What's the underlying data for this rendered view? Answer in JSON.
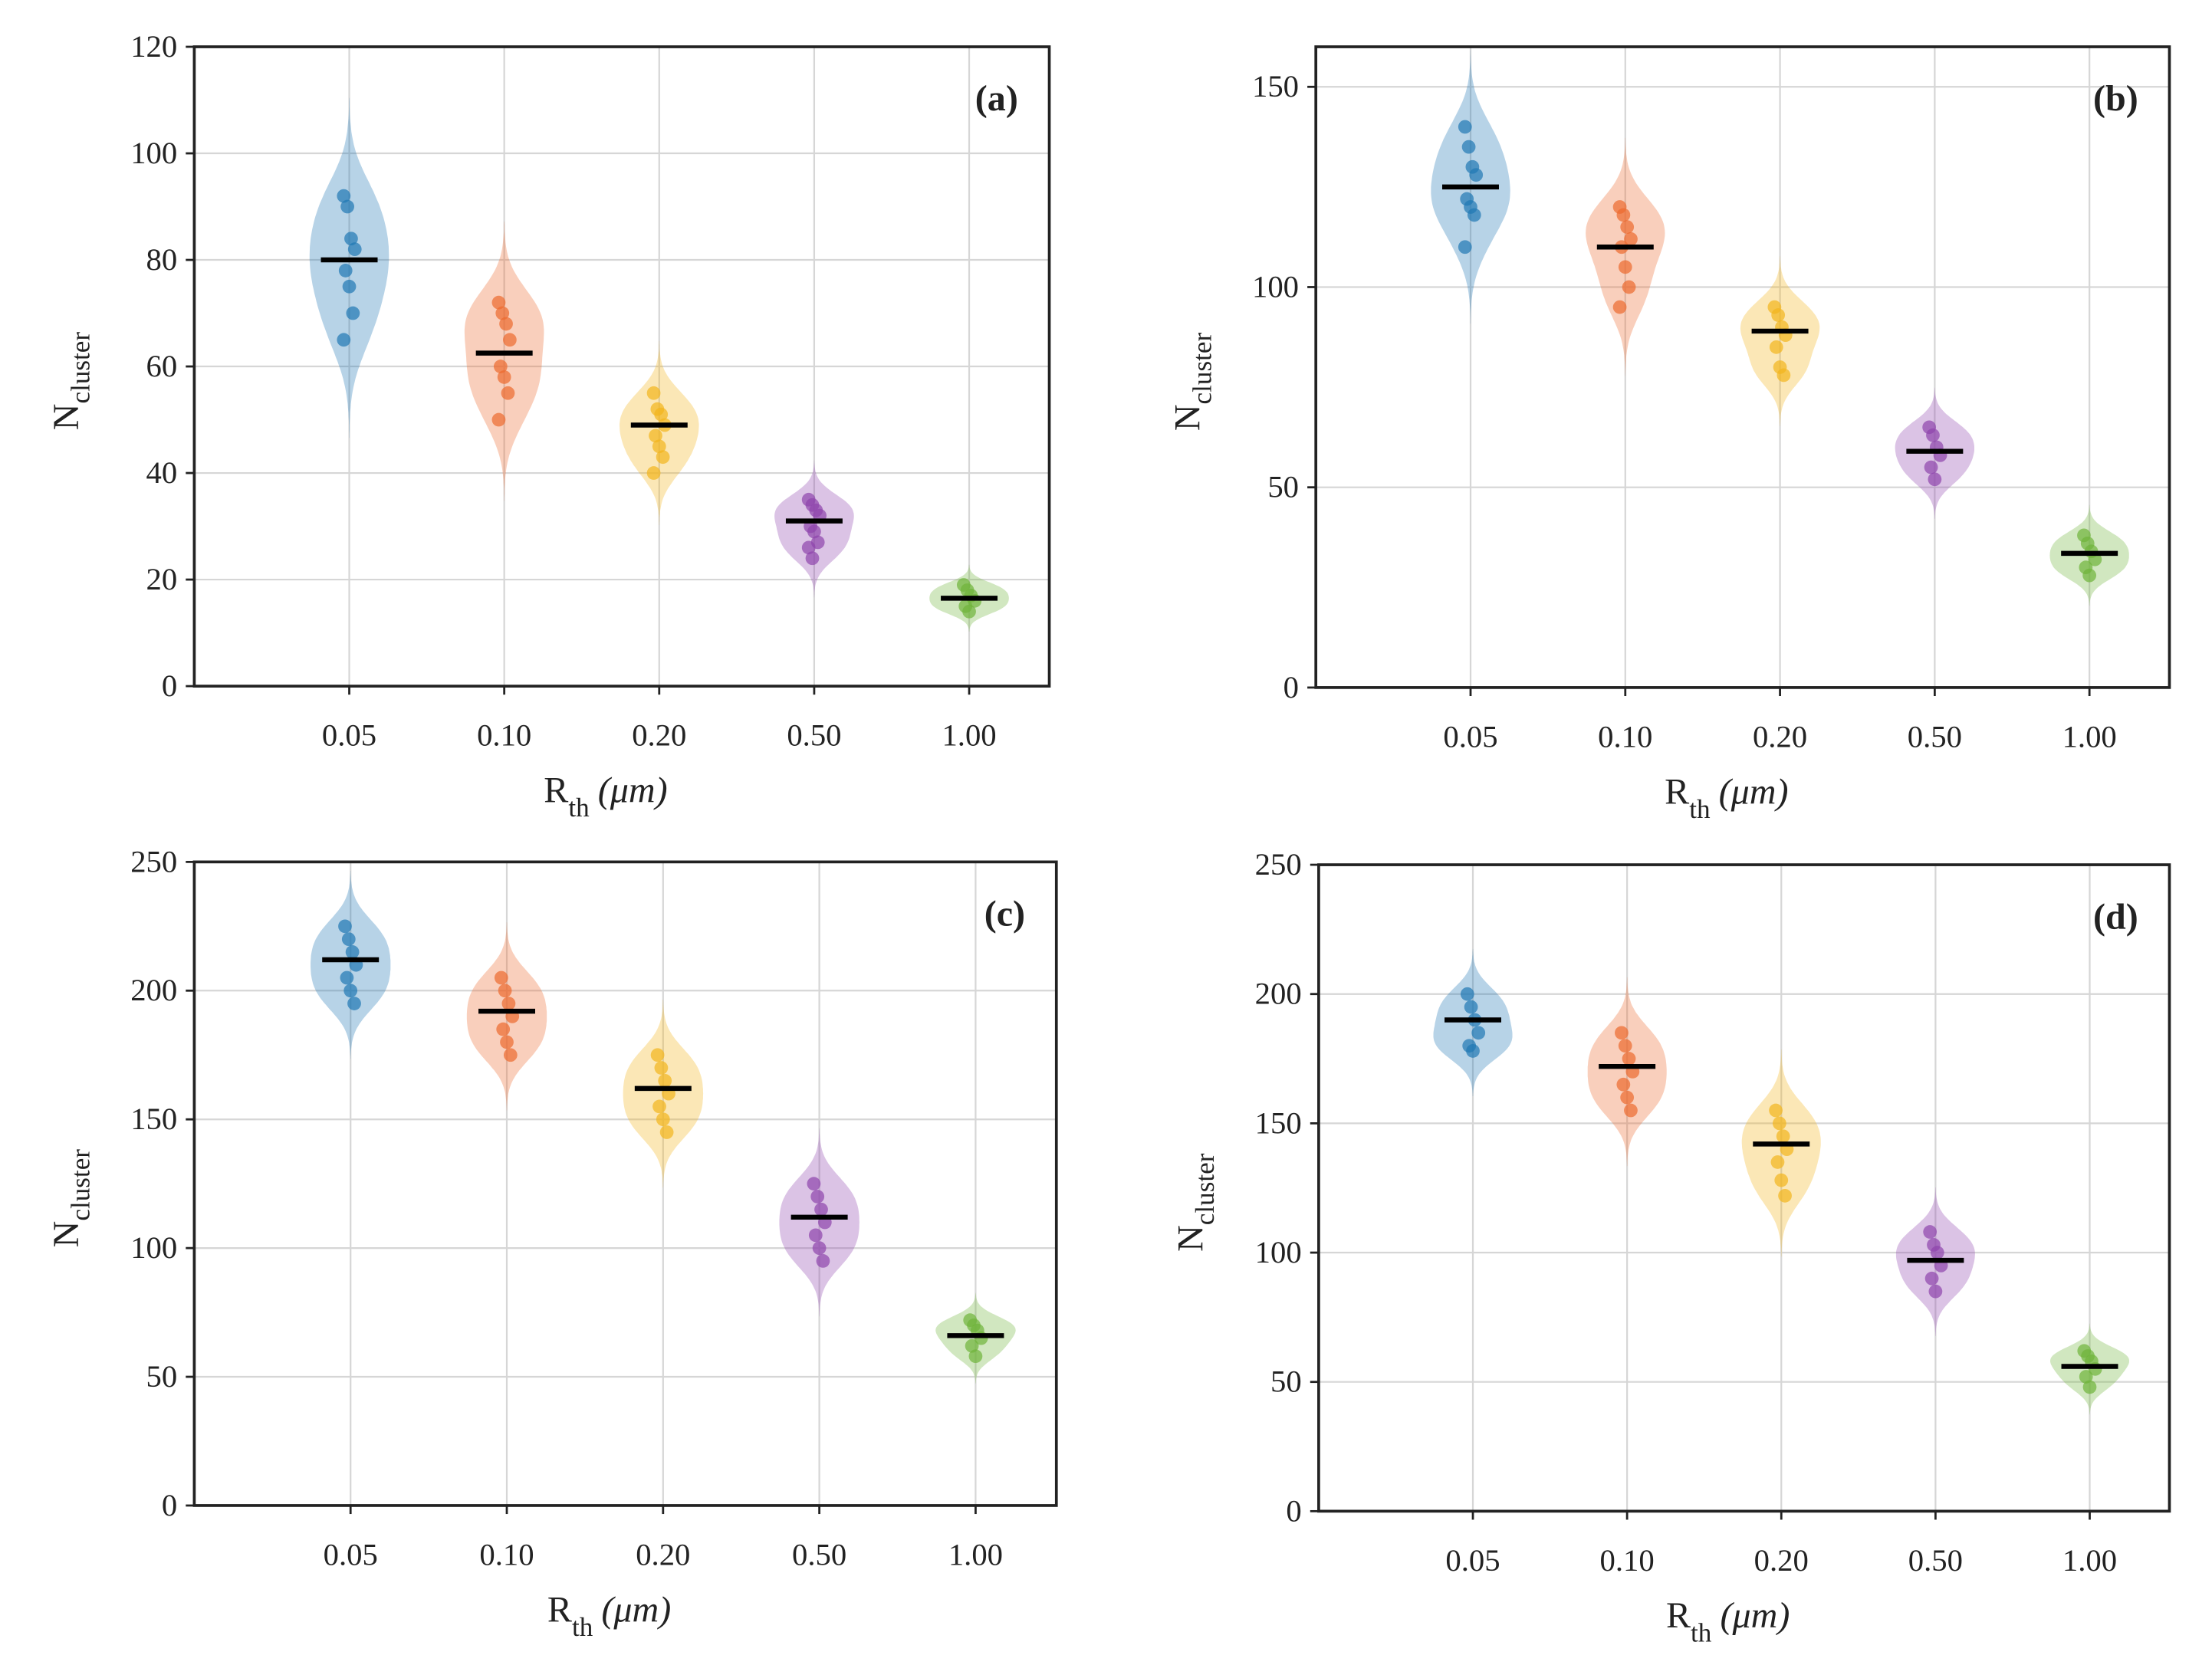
{
  "colors": [
    "#1f77b4",
    "#ec6a2e",
    "#f2b51c",
    "#8e44ad",
    "#6fb43a"
  ],
  "chart_data": [
    {
      "type": "violin",
      "panel_label": "(a)",
      "xlabel_main": "R",
      "xlabel_sub": "th",
      "xlabel_unit": "(μm)",
      "ylabel_main": "N",
      "ylabel_sub": "cluster",
      "categories": [
        "0.05",
        "0.10",
        "0.20",
        "0.50",
        "1.00"
      ],
      "ylim": [
        0,
        120
      ],
      "yticks": [
        0,
        20,
        40,
        60,
        80,
        100,
        120
      ],
      "grid": true,
      "means": [
        80,
        62.5,
        49,
        31,
        16.5
      ],
      "points": [
        [
          92,
          90,
          84,
          82,
          78,
          75,
          70,
          65
        ],
        [
          72,
          70,
          68,
          65,
          60,
          58,
          55,
          50
        ],
        [
          55,
          52,
          51,
          49,
          47,
          45,
          43,
          40
        ],
        [
          35,
          34,
          33,
          32,
          30,
          29,
          27,
          26,
          24
        ],
        [
          19,
          18,
          17,
          16,
          15,
          14
        ]
      ]
    },
    {
      "type": "violin",
      "panel_label": "(b)",
      "xlabel_main": "R",
      "xlabel_sub": "th",
      "xlabel_unit": "(μm)",
      "ylabel_main": "N",
      "ylabel_sub": "cluster",
      "categories": [
        "0.05",
        "0.10",
        "0.20",
        "0.50",
        "1.00"
      ],
      "ylim": [
        0,
        160
      ],
      "yticks": [
        0,
        50,
        100,
        150
      ],
      "grid": true,
      "means": [
        125,
        110,
        89,
        59,
        33.5
      ],
      "points": [
        [
          140,
          135,
          130,
          128,
          122,
          120,
          118,
          110
        ],
        [
          120,
          118,
          115,
          112,
          110,
          105,
          100,
          95
        ],
        [
          95,
          93,
          90,
          88,
          85,
          80,
          78
        ],
        [
          65,
          63,
          60,
          58,
          55,
          52
        ],
        [
          38,
          36,
          34,
          32,
          30,
          28
        ]
      ]
    },
    {
      "type": "violin",
      "panel_label": "(c)",
      "xlabel_main": "R",
      "xlabel_sub": "th",
      "xlabel_unit": "(μm)",
      "ylabel_main": "N",
      "ylabel_sub": "cluster",
      "categories": [
        "0.05",
        "0.10",
        "0.20",
        "0.50",
        "1.00"
      ],
      "ylim": [
        0,
        250
      ],
      "yticks": [
        0,
        50,
        100,
        150,
        200,
        250
      ],
      "grid": true,
      "means": [
        212,
        192,
        162,
        112,
        66
      ],
      "points": [
        [
          225,
          220,
          215,
          210,
          205,
          200,
          195
        ],
        [
          205,
          200,
          195,
          190,
          185,
          180,
          175
        ],
        [
          175,
          170,
          165,
          160,
          155,
          150,
          145
        ],
        [
          125,
          120,
          115,
          110,
          105,
          100,
          95
        ],
        [
          72,
          70,
          68,
          65,
          62,
          58
        ]
      ]
    },
    {
      "type": "violin",
      "panel_label": "(d)",
      "xlabel_main": "R",
      "xlabel_sub": "th",
      "xlabel_unit": "(μm)",
      "ylabel_main": "N",
      "ylabel_sub": "cluster",
      "categories": [
        "0.05",
        "0.10",
        "0.20",
        "0.50",
        "1.00"
      ],
      "ylim": [
        0,
        250
      ],
      "yticks": [
        0,
        50,
        100,
        150,
        200,
        250
      ],
      "grid": true,
      "means": [
        190,
        172,
        142,
        97,
        56
      ],
      "points": [
        [
          200,
          195,
          190,
          185,
          180,
          178
        ],
        [
          185,
          180,
          175,
          170,
          165,
          160,
          155
        ],
        [
          155,
          150,
          145,
          140,
          135,
          128,
          122
        ],
        [
          108,
          103,
          100,
          95,
          90,
          85
        ],
        [
          62,
          60,
          58,
          55,
          52,
          48
        ]
      ]
    }
  ]
}
